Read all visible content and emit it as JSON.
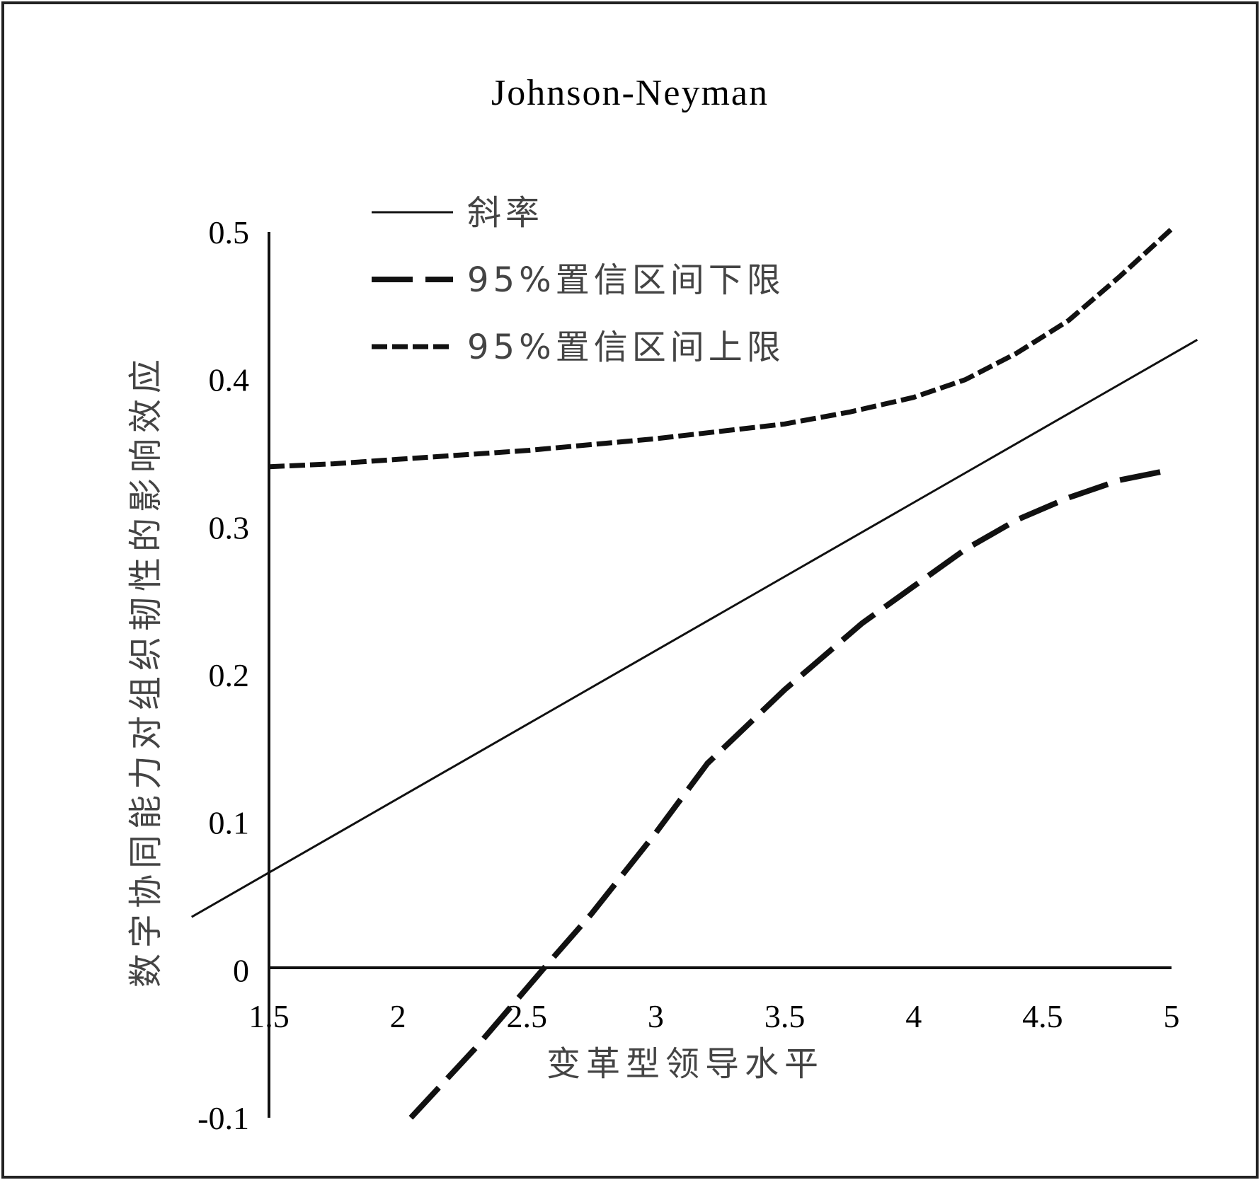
{
  "chart_data": {
    "type": "line",
    "title": "Johnson-Neyman",
    "xlabel": "变革型领导水平",
    "ylabel": "数字协同能力对组织韧性的影响效应",
    "xlim": [
      1.5,
      5
    ],
    "ylim": [
      -0.1,
      0.5
    ],
    "x_ticks": [
      "1.5",
      "2",
      "2.5",
      "3",
      "3.5",
      "4",
      "4.5",
      "5"
    ],
    "y_ticks": [
      "-0.1",
      "0",
      "0.1",
      "0.2",
      "0.3",
      "0.4",
      "0.5"
    ],
    "legend_position": "top-left",
    "series": [
      {
        "name": "斜率",
        "style": "solid",
        "x": [
          1.2,
          5.1
        ],
        "y": [
          0.036,
          0.427
        ]
      },
      {
        "name": "95%置信区间下限",
        "style": "long-dash",
        "x": [
          2.05,
          2.3,
          2.56,
          2.75,
          3.0,
          3.2,
          3.5,
          3.8,
          4.0,
          4.2,
          4.4,
          4.6,
          4.8,
          5.0
        ],
        "y": [
          -0.1,
          -0.053,
          0.0,
          0.038,
          0.093,
          0.14,
          0.19,
          0.235,
          0.26,
          0.285,
          0.305,
          0.32,
          0.332,
          0.339
        ]
      },
      {
        "name": "95%置信区间上限",
        "style": "short-dash",
        "x": [
          1.5,
          1.75,
          2.0,
          2.5,
          3.0,
          3.5,
          3.75,
          4.0,
          4.2,
          4.4,
          4.6,
          4.8,
          5.0
        ],
        "y": [
          0.341,
          0.343,
          0.346,
          0.352,
          0.36,
          0.37,
          0.378,
          0.388,
          0.4,
          0.418,
          0.44,
          0.47,
          0.502
        ]
      }
    ]
  }
}
